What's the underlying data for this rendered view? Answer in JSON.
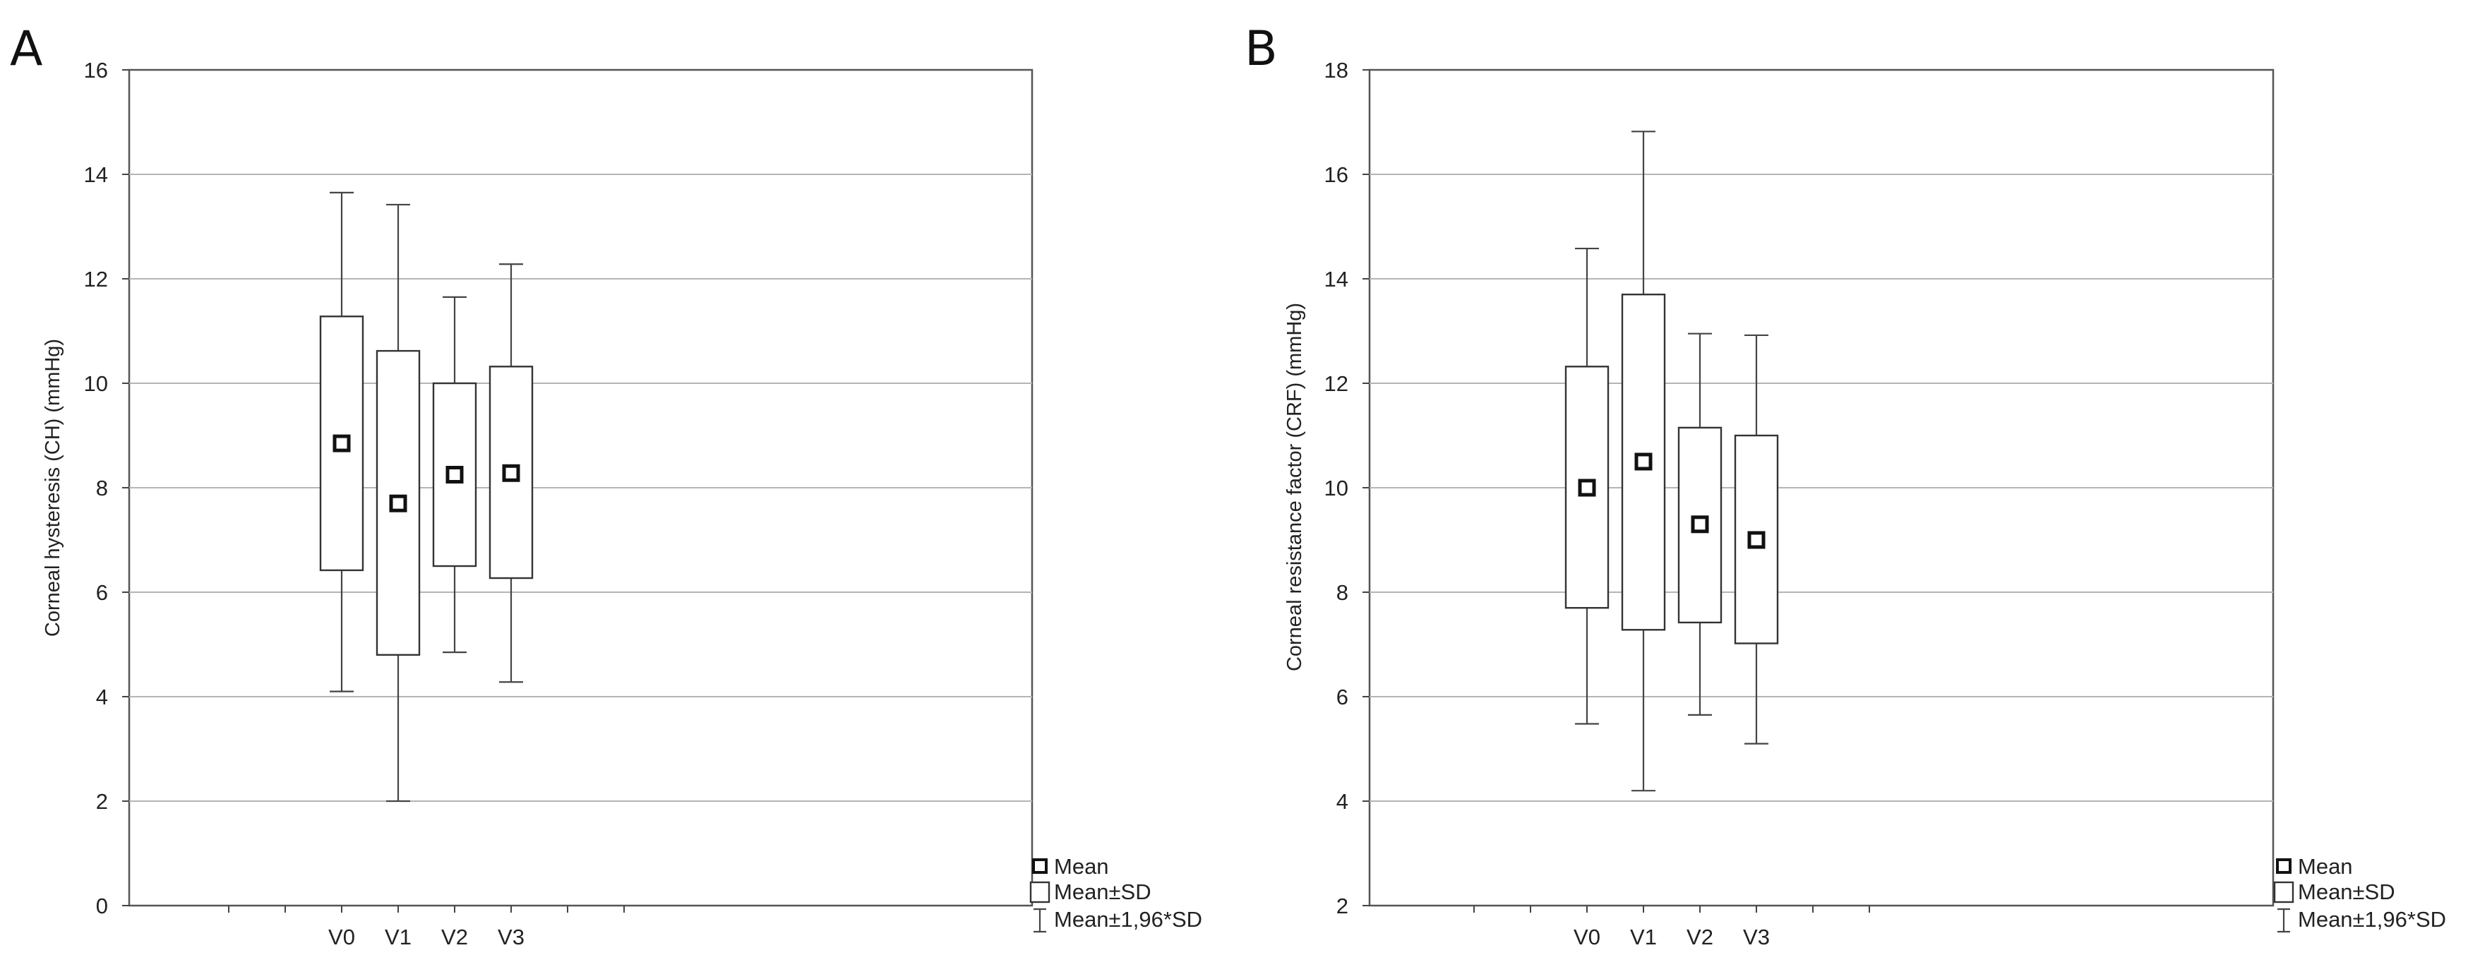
{
  "chart_data": [
    {
      "type": "box",
      "panel": "A",
      "title": "",
      "xlabel": "",
      "ylabel": "Corneal hysteresis (CH) (mmHg)",
      "ylim": [
        0,
        16
      ],
      "yticks": [
        0,
        2,
        4,
        6,
        8,
        10,
        12,
        14,
        16
      ],
      "grid": true,
      "categories": [
        "V0",
        "V1",
        "V2",
        "V3"
      ],
      "mean": [
        8.85,
        7.7,
        8.25,
        8.28
      ],
      "sd_low": [
        6.42,
        4.8,
        6.5,
        6.27
      ],
      "sd_high": [
        11.28,
        10.62,
        10.0,
        10.32
      ],
      "ci_low": [
        4.1,
        2.0,
        4.85,
        4.28
      ],
      "ci_high": [
        13.65,
        13.42,
        11.65,
        12.28
      ]
    },
    {
      "type": "box",
      "panel": "B",
      "title": "",
      "xlabel": "",
      "ylabel": "Corneal resistance factor (CRF) (mmHg)",
      "ylim": [
        2,
        18
      ],
      "yticks": [
        2,
        4,
        6,
        8,
        10,
        12,
        14,
        16,
        18
      ],
      "grid": true,
      "categories": [
        "V0",
        "V1",
        "V2",
        "V3"
      ],
      "mean": [
        10.0,
        10.5,
        9.3,
        9.0
      ],
      "sd_low": [
        7.7,
        7.28,
        7.42,
        7.02
      ],
      "sd_high": [
        12.32,
        13.7,
        11.15,
        11.0
      ],
      "ci_low": [
        5.48,
        4.2,
        5.65,
        5.1
      ],
      "ci_high": [
        14.58,
        16.82,
        12.95,
        12.92
      ]
    }
  ],
  "legend": {
    "placement": "bottom-right",
    "items": [
      {
        "symbol": "mean-square",
        "label": "Mean"
      },
      {
        "symbol": "box",
        "label": "Mean±SD"
      },
      {
        "symbol": "whisker",
        "label": "Mean±1,96*SD"
      }
    ]
  }
}
